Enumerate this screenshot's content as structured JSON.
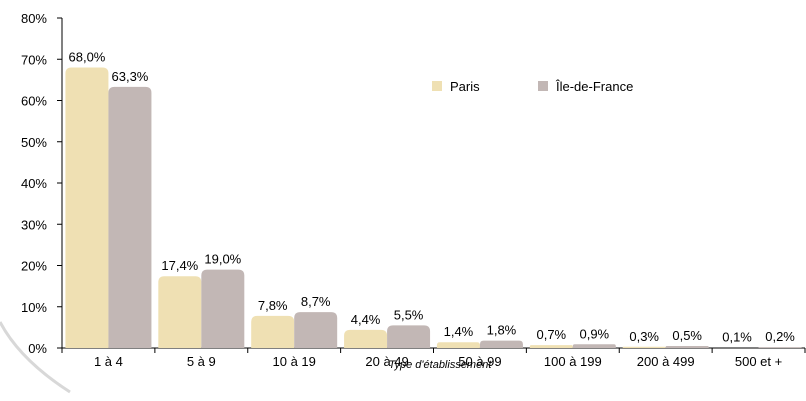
{
  "chart_data": {
    "type": "bar",
    "xlabel": "Type d'établissement",
    "ylabel": "",
    "ylim": [
      0,
      80
    ],
    "yticks": [
      0,
      10,
      20,
      30,
      40,
      50,
      60,
      70,
      80
    ],
    "ytick_labels": [
      "0%",
      "10%",
      "20%",
      "30%",
      "40%",
      "50%",
      "60%",
      "70%",
      "80%"
    ],
    "categories": [
      "1 à 4",
      "5 à 9",
      "10 à 19",
      "20 à 49",
      "50 à 99",
      "100 à 199",
      "200 à 499",
      "500 et +"
    ],
    "series": [
      {
        "name": "Paris",
        "color": "#efe0b3",
        "values": [
          68.0,
          17.4,
          7.8,
          4.4,
          1.4,
          0.7,
          0.3,
          0.1
        ],
        "labels": [
          "68,0%",
          "17,4%",
          "7,8%",
          "4,4%",
          "1,4%",
          "0,7%",
          "0,3%",
          "0,1%"
        ]
      },
      {
        "name": "Île-de-France",
        "color": "#c2b7b5",
        "values": [
          63.3,
          19.0,
          8.7,
          5.5,
          1.8,
          0.9,
          0.5,
          0.2
        ],
        "labels": [
          "63,3%",
          "19,0%",
          "8,7%",
          "5,5%",
          "1,8%",
          "0,9%",
          "0,5%",
          "0,2%"
        ]
      }
    ],
    "legend": "top-right",
    "grid": false
  }
}
